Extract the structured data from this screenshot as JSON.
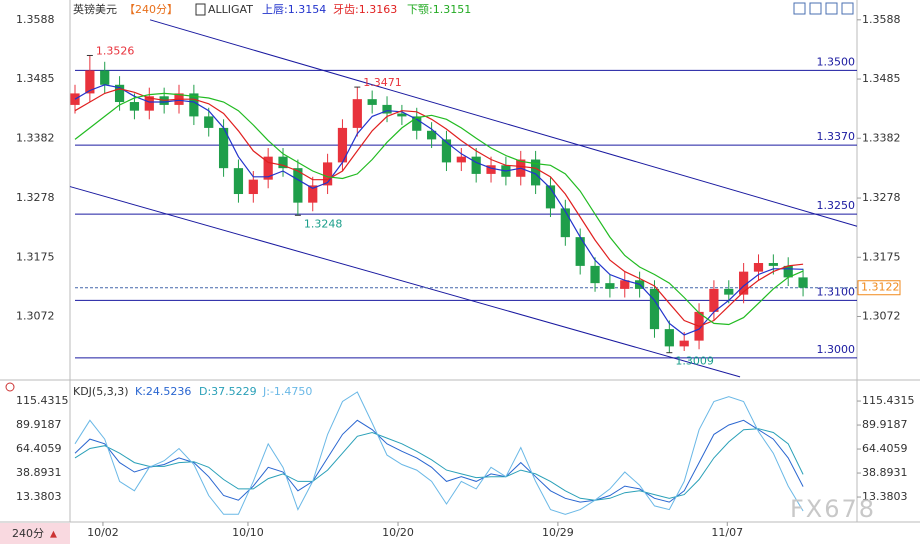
{
  "header": {
    "symbol": "英镑美元",
    "period": "【240分】",
    "indicator": "ALLIGAT",
    "lips": "上唇:1.3154",
    "teeth": "牙齿:1.3163",
    "jaw": "下颚:1.3151"
  },
  "footer": {
    "period_button": "240分",
    "watermark": "FX678"
  },
  "chart_data": [
    {
      "type": "candlestick",
      "open": [
        1.344,
        1.346,
        1.35,
        1.3475,
        1.3445,
        1.343,
        1.3455,
        1.344,
        1.346,
        1.342,
        1.34,
        1.333,
        1.3285,
        1.331,
        1.335,
        1.333,
        1.327,
        1.33,
        1.334,
        1.34,
        1.345,
        1.344,
        1.3425,
        1.342,
        1.3395,
        1.338,
        1.334,
        1.335,
        1.332,
        1.3335,
        1.3315,
        1.3345,
        1.33,
        1.326,
        1.321,
        1.316,
        1.313,
        1.312,
        1.3135,
        1.312,
        1.305,
        1.302,
        1.303,
        1.308,
        1.312,
        1.311,
        1.315,
        1.3165,
        1.316,
        1.314
      ],
      "high": [
        1.3475,
        1.3526,
        1.3515,
        1.349,
        1.346,
        1.347,
        1.347,
        1.3475,
        1.3475,
        1.3435,
        1.3415,
        1.3345,
        1.3325,
        1.3365,
        1.3365,
        1.3345,
        1.3315,
        1.3355,
        1.3415,
        1.3471,
        1.3465,
        1.3455,
        1.344,
        1.3435,
        1.341,
        1.3395,
        1.3365,
        1.3365,
        1.335,
        1.335,
        1.336,
        1.336,
        1.3315,
        1.3275,
        1.3225,
        1.3175,
        1.3145,
        1.315,
        1.315,
        1.3135,
        1.3065,
        1.3045,
        1.3095,
        1.3135,
        1.3135,
        1.3165,
        1.318,
        1.318,
        1.3175,
        1.3155
      ],
      "low": [
        1.3425,
        1.3445,
        1.346,
        1.343,
        1.3415,
        1.3415,
        1.3425,
        1.3425,
        1.3405,
        1.3385,
        1.3315,
        1.327,
        1.327,
        1.3295,
        1.3315,
        1.3248,
        1.3255,
        1.3285,
        1.3325,
        1.3385,
        1.3425,
        1.341,
        1.3405,
        1.338,
        1.3365,
        1.3325,
        1.3325,
        1.3305,
        1.3305,
        1.33,
        1.33,
        1.3285,
        1.3245,
        1.3195,
        1.3145,
        1.3115,
        1.3105,
        1.3105,
        1.3105,
        1.3035,
        1.3009,
        1.3012,
        1.3015,
        1.3065,
        1.3095,
        1.3095,
        1.3135,
        1.3145,
        1.3125,
        1.3107
      ],
      "close": [
        1.346,
        1.35,
        1.3475,
        1.3445,
        1.343,
        1.3455,
        1.344,
        1.346,
        1.342,
        1.34,
        1.333,
        1.3285,
        1.331,
        1.335,
        1.333,
        1.327,
        1.33,
        1.334,
        1.34,
        1.345,
        1.344,
        1.3425,
        1.342,
        1.3395,
        1.338,
        1.334,
        1.335,
        1.332,
        1.3335,
        1.3315,
        1.3345,
        1.33,
        1.326,
        1.321,
        1.316,
        1.313,
        1.312,
        1.3135,
        1.312,
        1.305,
        1.302,
        1.303,
        1.308,
        1.312,
        1.311,
        1.315,
        1.3165,
        1.316,
        1.314,
        1.3122
      ],
      "up_color": "#e8323c",
      "down_color": "#1f9e4a",
      "series": [
        {
          "color": "#2233cc",
          "values": [
            1.345,
            1.3465,
            1.3475,
            1.347,
            1.3455,
            1.3445,
            1.3445,
            1.3448,
            1.3445,
            1.343,
            1.34,
            1.335,
            1.3315,
            1.3315,
            1.3325,
            1.331,
            1.3295,
            1.3305,
            1.334,
            1.339,
            1.342,
            1.343,
            1.3428,
            1.3415,
            1.3398,
            1.3375,
            1.3355,
            1.334,
            1.333,
            1.3325,
            1.333,
            1.332,
            1.3295,
            1.3255,
            1.321,
            1.317,
            1.3145,
            1.3135,
            1.3128,
            1.31,
            1.306,
            1.304,
            1.305,
            1.308,
            1.31,
            1.3125,
            1.3145,
            1.3155,
            1.3155,
            1.3154
          ]
        },
        {
          "color": "#e02020",
          "values": [
            1.343,
            1.3445,
            1.346,
            1.3468,
            1.3462,
            1.3452,
            1.3448,
            1.345,
            1.345,
            1.3442,
            1.3425,
            1.3395,
            1.336,
            1.334,
            1.3335,
            1.3325,
            1.331,
            1.331,
            1.3325,
            1.336,
            1.3395,
            1.342,
            1.343,
            1.3428,
            1.3415,
            1.3398,
            1.3378,
            1.336,
            1.3345,
            1.3335,
            1.3333,
            1.333,
            1.3315,
            1.3285,
            1.3245,
            1.3205,
            1.317,
            1.315,
            1.3138,
            1.3125,
            1.3095,
            1.3065,
            1.3055,
            1.3065,
            1.309,
            1.3115,
            1.3135,
            1.315,
            1.316,
            1.3163
          ]
        },
        {
          "color": "#22bb22",
          "values": [
            1.338,
            1.34,
            1.342,
            1.344,
            1.3452,
            1.3458,
            1.346,
            1.3458,
            1.3455,
            1.3452,
            1.3445,
            1.343,
            1.3405,
            1.3378,
            1.3355,
            1.334,
            1.3325,
            1.3315,
            1.3312,
            1.332,
            1.3345,
            1.3375,
            1.34,
            1.3418,
            1.3422,
            1.3415,
            1.34,
            1.3382,
            1.3365,
            1.3352,
            1.3342,
            1.3338,
            1.3335,
            1.332,
            1.329,
            1.325,
            1.321,
            1.3178,
            1.3158,
            1.3145,
            1.313,
            1.3105,
            1.3078,
            1.306,
            1.3058,
            1.307,
            1.3095,
            1.312,
            1.314,
            1.3151
          ]
        }
      ],
      "xlim": [
        -0.875,
        52.63
      ],
      "ylim": [
        1.2965,
        1.3619
      ],
      "yticks": [
        1.3588,
        1.3485,
        1.3382,
        1.3278,
        1.3175,
        1.3072
      ],
      "xticks": [
        {
          "value": 1.88,
          "label": "10/02"
        },
        {
          "value": 11.64,
          "label": "10/10"
        },
        {
          "value": 21.74,
          "label": "10/20"
        },
        {
          "value": 32.5,
          "label": "10/29"
        },
        {
          "value": 43.9,
          "label": "11/07"
        }
      ],
      "levels": [
        {
          "value": 1.35,
          "label": "1.3500"
        },
        {
          "value": 1.337,
          "label": "1.3370"
        },
        {
          "value": 1.325,
          "label": "1.3250"
        },
        {
          "value": 1.31,
          "label": "1.3100"
        },
        {
          "value": 1.3,
          "label": "1.3000"
        }
      ],
      "level_color": "#1a1aa0",
      "trendlines": [
        {
          "x": [
            5.05,
            52.63
          ],
          "y": [
            1.3588,
            1.3229
          ]
        },
        {
          "x": [
            -0.34,
            44.76
          ],
          "y": [
            1.3298,
            1.2967
          ]
        }
      ],
      "annotations": [
        {
          "x": 1,
          "value": 1.3526,
          "color": "#e8323c"
        },
        {
          "x": 19,
          "value": 1.3471,
          "color": "#e8323c"
        },
        {
          "x": 15,
          "value": 1.3248,
          "color": "#1a9e8a"
        },
        {
          "x": 40,
          "value": 1.3009,
          "color": "#1a9e8a"
        }
      ],
      "last": 1.3122,
      "last_color": "#f08a1c"
    },
    {
      "type": "line",
      "title": "KDJ(5,3,3)",
      "series": [
        {
          "name": "K:24.5236",
          "color": "#2a66d0",
          "values": [
            60,
            75,
            70,
            50,
            40,
            45,
            48,
            55,
            50,
            35,
            15,
            10,
            25,
            45,
            40,
            20,
            30,
            55,
            80,
            95,
            85,
            70,
            62,
            55,
            45,
            30,
            35,
            30,
            38,
            35,
            50,
            35,
            20,
            12,
            8,
            10,
            15,
            25,
            22,
            12,
            8,
            20,
            50,
            80,
            90,
            95,
            85,
            75,
            55,
            24.5
          ]
        },
        {
          "name": "D:37.5229",
          "color": "#2aa0b8",
          "values": [
            55,
            65,
            68,
            60,
            50,
            46,
            46,
            50,
            51,
            45,
            32,
            22,
            22,
            33,
            38,
            30,
            30,
            42,
            60,
            78,
            82,
            76,
            70,
            62,
            53,
            42,
            38,
            34,
            35,
            35,
            42,
            38,
            30,
            20,
            12,
            10,
            12,
            18,
            20,
            16,
            12,
            16,
            32,
            55,
            72,
            85,
            86,
            82,
            70,
            37.5
          ]
        },
        {
          "name": "J:-1.4750",
          "color": "#6ab8e6",
          "values": [
            70,
            95,
            75,
            30,
            20,
            45,
            52,
            65,
            48,
            15,
            -5,
            -5,
            30,
            70,
            45,
            0,
            30,
            80,
            115,
            125,
            92,
            58,
            48,
            42,
            30,
            6,
            30,
            22,
            45,
            35,
            66,
            30,
            0,
            -5,
            0,
            10,
            22,
            40,
            26,
            4,
            0,
            30,
            85,
            115,
            120,
            115,
            83,
            60,
            25,
            -1.5
          ]
        }
      ],
      "xlim": [
        -0.875,
        52.63
      ],
      "ylim": [
        -8.9,
        129.3
      ],
      "yticks": [
        115.4315,
        89.9187,
        64.4059,
        38.8931,
        13.3803
      ]
    }
  ]
}
